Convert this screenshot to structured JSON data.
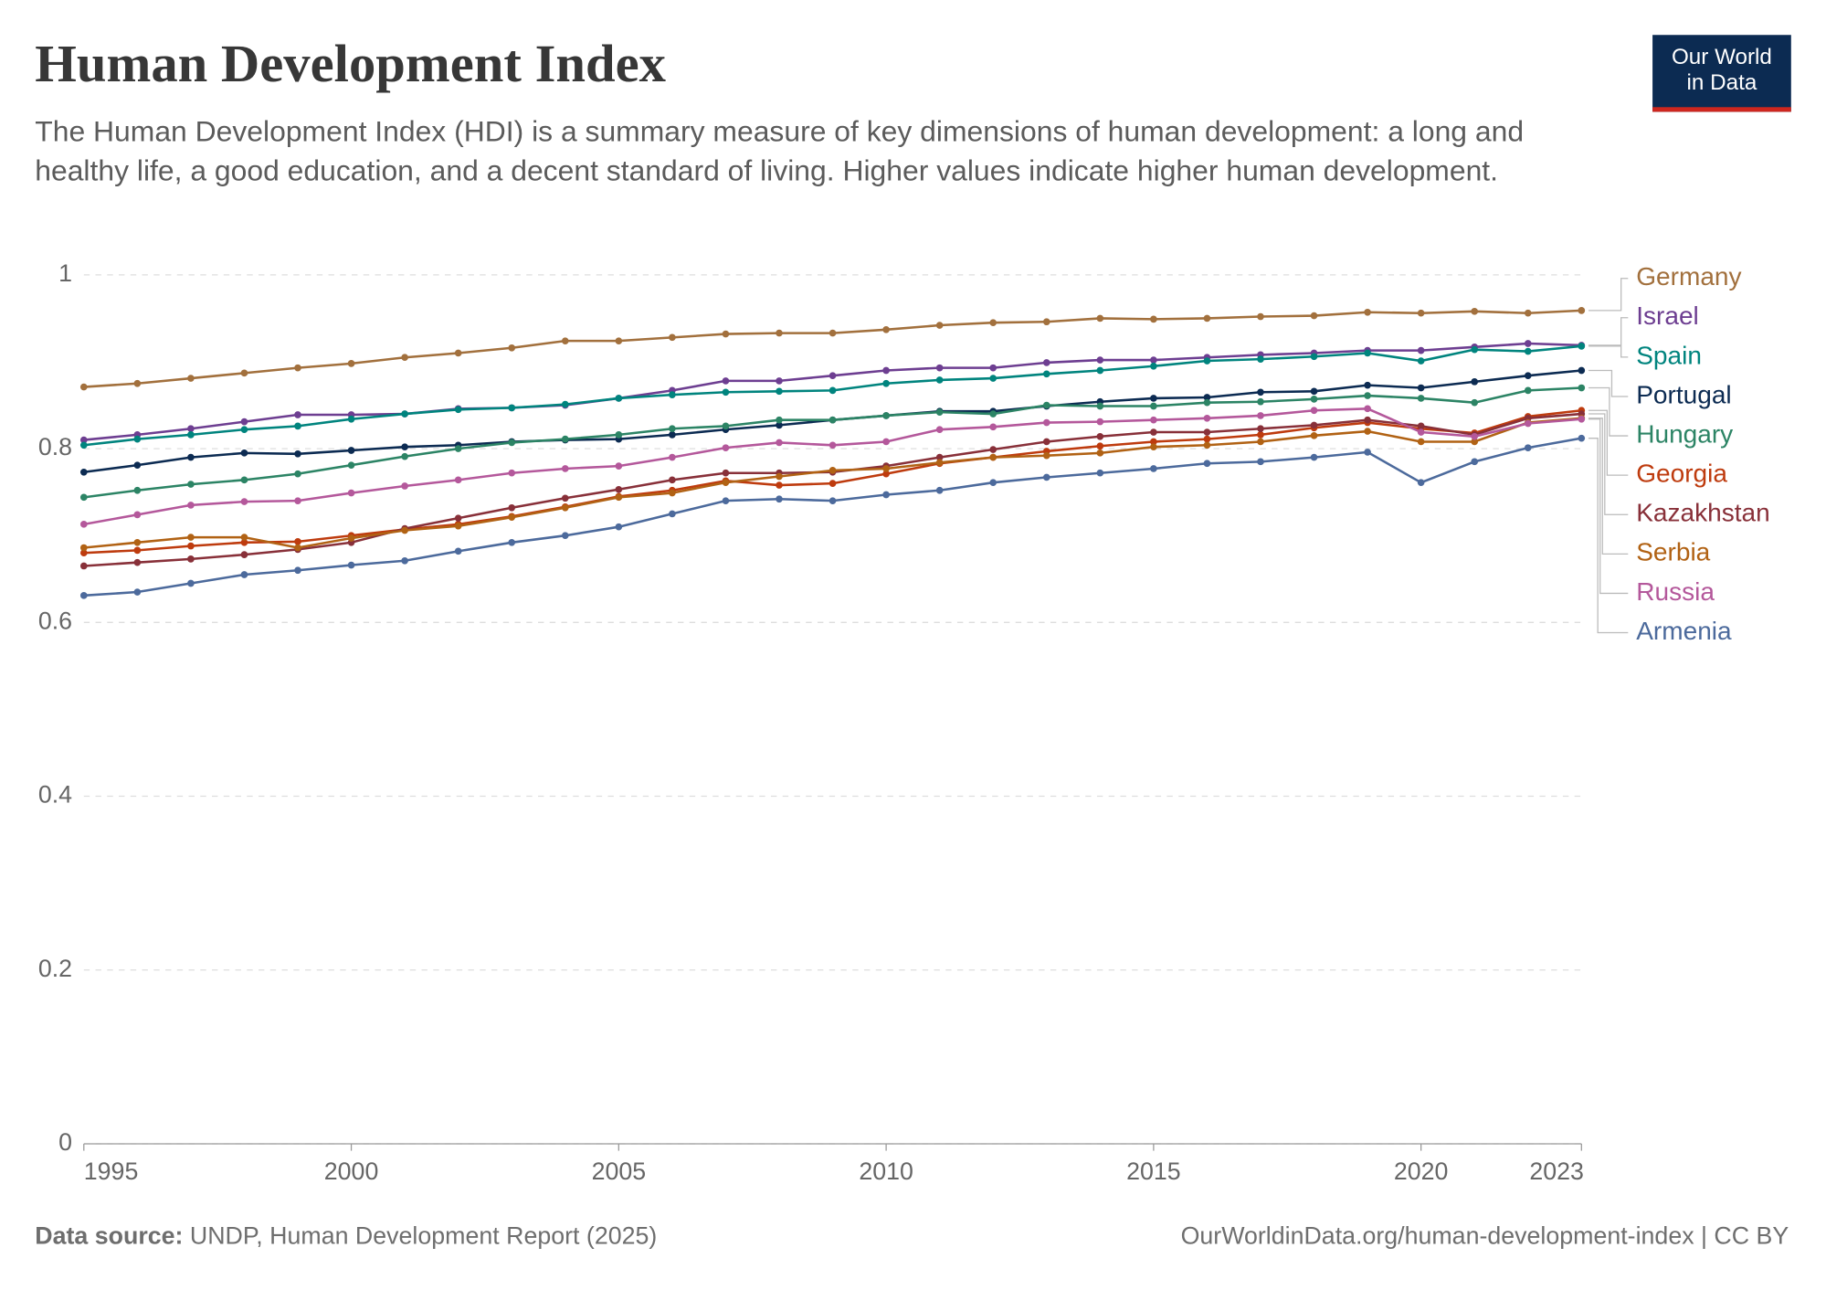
{
  "chart_data": {
    "type": "line",
    "title": "Human Development Index",
    "subtitle": "The Human Development Index (HDI) is a summary measure of key dimensions of human development: a long and healthy life, a good education, and a decent standard of living. Higher values indicate higher human development.",
    "logo": [
      "Our World",
      "in Data"
    ],
    "source_label": "Data source:",
    "source": "UNDP, Human Development Report (2025)",
    "url": "OurWorldinData.org/human-development-index | CC BY",
    "x": [
      1995,
      1996,
      1997,
      1998,
      1999,
      2000,
      2001,
      2002,
      2003,
      2004,
      2005,
      2006,
      2007,
      2008,
      2009,
      2010,
      2011,
      2012,
      2013,
      2014,
      2015,
      2016,
      2017,
      2018,
      2019,
      2020,
      2021,
      2022,
      2023
    ],
    "xlim": [
      1995,
      2023
    ],
    "xticks": [
      1995,
      2000,
      2005,
      2010,
      2015,
      2020,
      2023
    ],
    "ylim": [
      0,
      1
    ],
    "yticks": [
      0,
      0.2,
      0.4,
      0.6,
      0.8,
      1
    ],
    "grid": true,
    "series": [
      {
        "name": "Germany",
        "color": "#a2703d",
        "values": [
          0.871,
          0.875,
          0.881,
          0.887,
          0.893,
          0.898,
          0.905,
          0.91,
          0.916,
          0.924,
          0.924,
          0.928,
          0.932,
          0.933,
          0.933,
          0.937,
          0.942,
          0.945,
          0.946,
          0.95,
          0.949,
          0.95,
          0.952,
          0.953,
          0.957,
          0.956,
          0.958,
          0.956,
          0.959
        ]
      },
      {
        "name": "Israel",
        "color": "#6d3e91",
        "values": [
          0.81,
          0.816,
          0.823,
          0.831,
          0.839,
          0.839,
          0.84,
          0.846,
          0.847,
          0.85,
          0.858,
          0.867,
          0.878,
          0.878,
          0.884,
          0.89,
          0.893,
          0.893,
          0.899,
          0.902,
          0.902,
          0.905,
          0.908,
          0.91,
          0.913,
          0.913,
          0.917,
          0.921,
          0.919
        ]
      },
      {
        "name": "Spain",
        "color": "#00847e",
        "values": [
          0.804,
          0.811,
          0.816,
          0.822,
          0.826,
          0.834,
          0.84,
          0.845,
          0.847,
          0.851,
          0.858,
          0.862,
          0.865,
          0.866,
          0.867,
          0.875,
          0.879,
          0.881,
          0.886,
          0.89,
          0.895,
          0.901,
          0.903,
          0.906,
          0.91,
          0.901,
          0.914,
          0.912,
          0.918
        ]
      },
      {
        "name": "Portugal",
        "color": "#0c2b52",
        "values": [
          0.773,
          0.781,
          0.79,
          0.795,
          0.794,
          0.798,
          0.802,
          0.804,
          0.808,
          0.81,
          0.811,
          0.816,
          0.822,
          0.827,
          0.833,
          0.838,
          0.843,
          0.843,
          0.849,
          0.854,
          0.858,
          0.859,
          0.865,
          0.866,
          0.873,
          0.87,
          0.877,
          0.884,
          0.89
        ]
      },
      {
        "name": "Hungary",
        "color": "#2c8465",
        "values": [
          0.744,
          0.752,
          0.759,
          0.764,
          0.771,
          0.781,
          0.791,
          0.8,
          0.807,
          0.811,
          0.816,
          0.823,
          0.826,
          0.833,
          0.833,
          0.838,
          0.842,
          0.84,
          0.85,
          0.849,
          0.849,
          0.853,
          0.854,
          0.857,
          0.861,
          0.858,
          0.853,
          0.867,
          0.87
        ]
      },
      {
        "name": "Georgia",
        "color": "#be3b0e",
        "values": [
          0.68,
          0.683,
          0.688,
          0.692,
          0.693,
          0.7,
          0.707,
          0.713,
          0.722,
          0.733,
          0.745,
          0.752,
          0.763,
          0.758,
          0.76,
          0.771,
          0.783,
          0.79,
          0.797,
          0.803,
          0.808,
          0.811,
          0.816,
          0.824,
          0.83,
          0.823,
          0.818,
          0.837,
          0.844
        ]
      },
      {
        "name": "Kazakhstan",
        "color": "#883039",
        "values": [
          0.665,
          0.669,
          0.673,
          0.678,
          0.684,
          0.692,
          0.708,
          0.72,
          0.732,
          0.743,
          0.753,
          0.764,
          0.772,
          0.772,
          0.773,
          0.78,
          0.79,
          0.799,
          0.808,
          0.814,
          0.819,
          0.819,
          0.823,
          0.827,
          0.833,
          0.826,
          0.816,
          0.835,
          0.84
        ]
      },
      {
        "name": "Serbia",
        "color": "#b16214",
        "values": [
          0.686,
          0.692,
          0.698,
          0.698,
          0.686,
          0.697,
          0.706,
          0.711,
          0.721,
          0.732,
          0.744,
          0.749,
          0.761,
          0.768,
          0.775,
          0.777,
          0.784,
          0.79,
          0.792,
          0.795,
          0.802,
          0.804,
          0.808,
          0.815,
          0.82,
          0.808,
          0.808,
          0.83,
          0.835
        ]
      },
      {
        "name": "Russia",
        "color": "#b4589b",
        "values": [
          0.713,
          0.724,
          0.735,
          0.739,
          0.74,
          0.749,
          0.757,
          0.764,
          0.772,
          0.777,
          0.78,
          0.79,
          0.801,
          0.807,
          0.804,
          0.808,
          0.822,
          0.825,
          0.83,
          0.831,
          0.833,
          0.835,
          0.838,
          0.844,
          0.846,
          0.819,
          0.814,
          0.829,
          0.834
        ]
      },
      {
        "name": "Armenia",
        "color": "#4c6a9c",
        "values": [
          0.631,
          0.635,
          0.645,
          0.655,
          0.66,
          0.666,
          0.671,
          0.682,
          0.692,
          0.7,
          0.71,
          0.725,
          0.74,
          0.742,
          0.74,
          0.747,
          0.752,
          0.761,
          0.767,
          0.772,
          0.777,
          0.783,
          0.785,
          0.79,
          0.796,
          0.761,
          0.785,
          0.801,
          0.812
        ]
      }
    ]
  }
}
